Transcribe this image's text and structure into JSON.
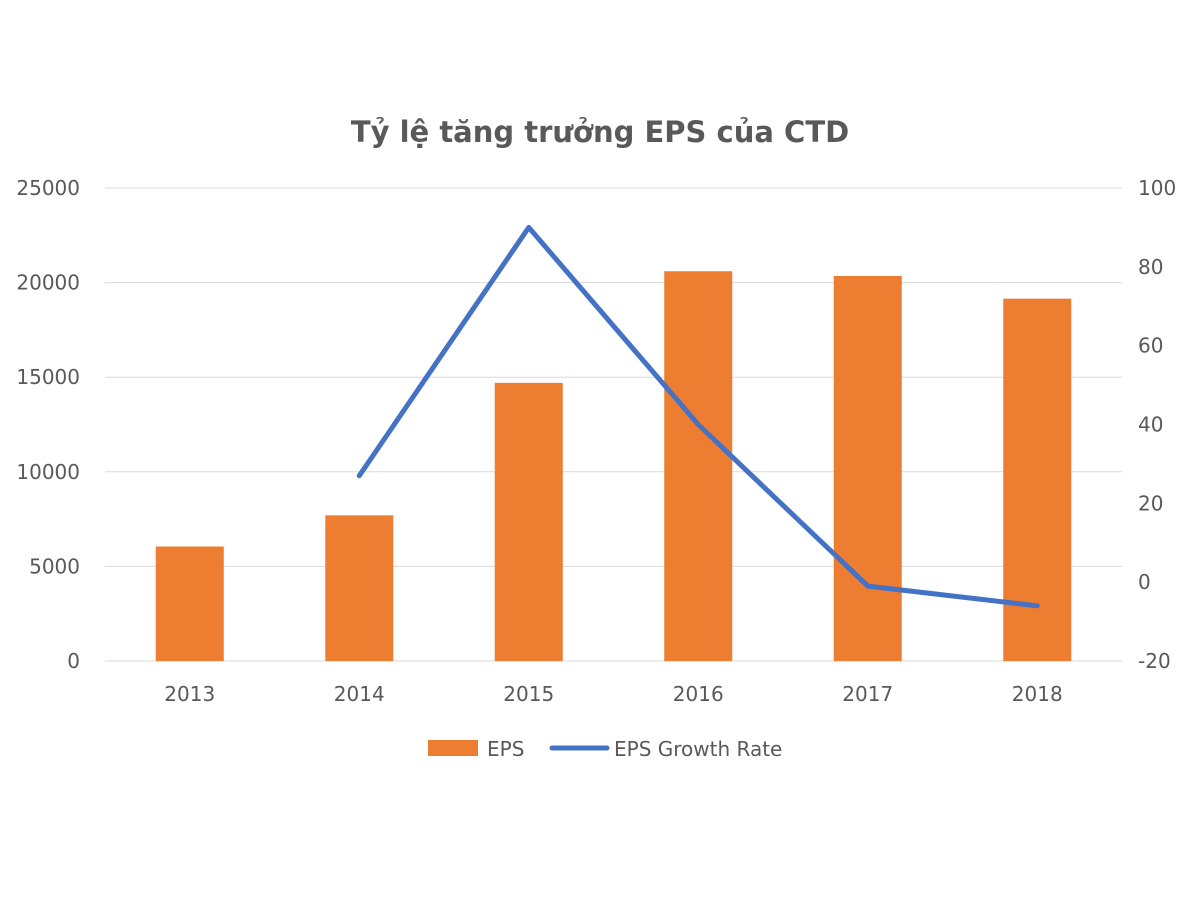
{
  "chart_data": {
    "type": "bar",
    "title": "Tỷ lệ tăng trưởng EPS của CTD",
    "categories": [
      "2013",
      "2014",
      "2015",
      "2016",
      "2017",
      "2018"
    ],
    "series": [
      {
        "name": "EPS",
        "type": "bar",
        "axis": "left",
        "color": "#ED7D31",
        "values": [
          6050,
          7700,
          14700,
          20600,
          20350,
          19150
        ]
      },
      {
        "name": "EPS Growth Rate",
        "type": "line",
        "axis": "right",
        "color": "#4472C4",
        "values": [
          null,
          27,
          90,
          40,
          -1,
          -6
        ]
      }
    ],
    "y_left": {
      "min": 0,
      "max": 25000,
      "ticks": [
        "0",
        "5000",
        "10000",
        "15000",
        "20000",
        "25000"
      ]
    },
    "y_right": {
      "min": -20,
      "max": 100,
      "ticks": [
        "-20",
        "0",
        "20",
        "40",
        "60",
        "80",
        "100"
      ]
    },
    "grid": true,
    "legend_position": "bottom"
  }
}
